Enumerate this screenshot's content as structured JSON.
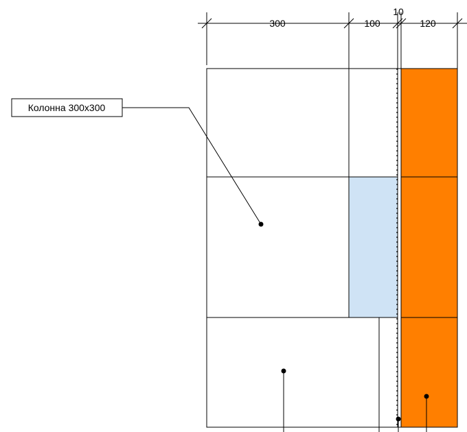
{
  "dimensions": {
    "block_width": "300",
    "insulation_width": "100",
    "air_gap_width": "10",
    "brick_width": "120"
  },
  "callouts": {
    "column_label": "Колонна 300х300"
  },
  "materials": {
    "column_fill": "#808080",
    "insulation_fill": "#cfe3f5",
    "brick_fill": "#ff7f00",
    "air_gap_fill": "#c0c0c0",
    "line_color": "#000000"
  }
}
